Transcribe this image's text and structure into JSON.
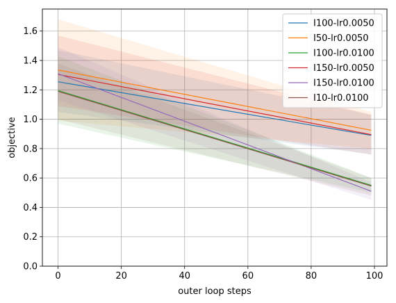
{
  "chart_data": {
    "type": "line",
    "xlabel": "outer loop steps",
    "ylabel": "objective",
    "xlim": [
      -4.95,
      103.95
    ],
    "ylim": [
      0.0,
      1.75
    ],
    "xticks": [
      0,
      20,
      40,
      60,
      80,
      100
    ],
    "yticks": [
      0.0,
      0.2,
      0.4,
      0.6,
      0.8,
      1.0,
      1.2,
      1.4,
      1.6
    ],
    "xtick_labels": [
      "0",
      "20",
      "40",
      "60",
      "80",
      "100"
    ],
    "ytick_labels": [
      "0.0",
      "0.2",
      "0.4",
      "0.6",
      "0.8",
      "1.0",
      "1.2",
      "1.4",
      "1.6"
    ],
    "grid": true,
    "legend_position": "top-right",
    "series": [
      {
        "name": "I100-lr0.0050",
        "color": "#1f77b4",
        "x": [
          0,
          99
        ],
        "y": [
          1.255,
          0.89
        ],
        "band_lower": [
          1.05,
          0.76
        ],
        "band_upper": [
          1.47,
          1.03
        ]
      },
      {
        "name": "I50-lr0.0050",
        "color": "#ff7f0e",
        "x": [
          0,
          99
        ],
        "y": [
          1.335,
          0.925
        ],
        "band_lower": [
          0.99,
          0.8
        ],
        "band_upper": [
          1.68,
          1.05
        ]
      },
      {
        "name": "I100-lr0.0100",
        "color": "#2ca02c",
        "x": [
          0,
          99
        ],
        "y": [
          1.195,
          0.55
        ],
        "band_lower": [
          0.97,
          0.5
        ],
        "band_upper": [
          1.43,
          0.6
        ]
      },
      {
        "name": "I150-lr0.0050",
        "color": "#d62728",
        "x": [
          0,
          99
        ],
        "y": [
          1.305,
          0.895
        ],
        "band_lower": [
          1.09,
          0.76
        ],
        "band_upper": [
          1.57,
          1.03
        ]
      },
      {
        "name": "I150-lr0.0100",
        "color": "#9467bd",
        "x": [
          0,
          99
        ],
        "y": [
          1.31,
          0.51
        ],
        "band_lower": [
          1.13,
          0.45
        ],
        "band_upper": [
          1.49,
          0.57
        ]
      },
      {
        "name": "I10-lr0.0100",
        "color": "#8c564b",
        "x": [
          0,
          99
        ],
        "y": [
          1.19,
          0.545
        ],
        "band_lower": [
          1.0,
          0.48
        ],
        "band_upper": [
          1.38,
          0.6
        ]
      }
    ]
  }
}
